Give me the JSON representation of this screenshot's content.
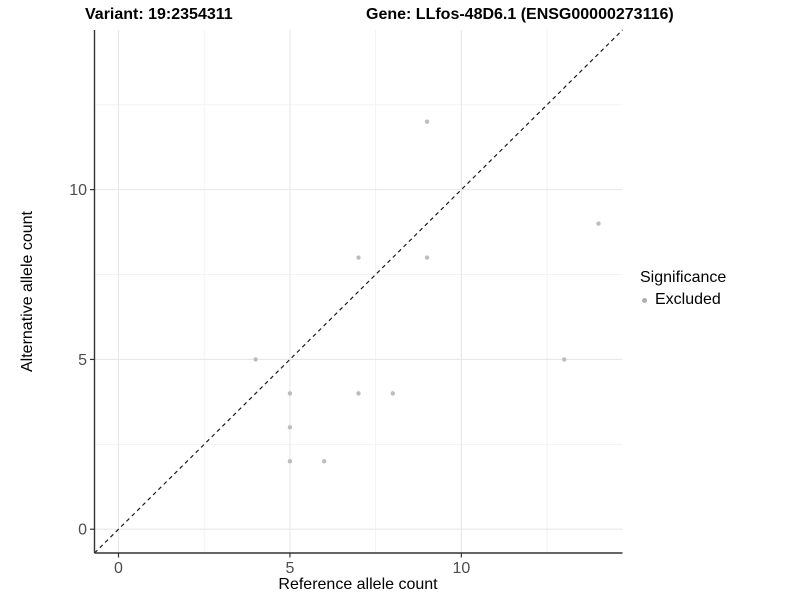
{
  "header": {
    "variant_label": "Variant: 19:2354311",
    "gene_label": "Gene: LLfos-48D6.1 (ENSG00000273116)"
  },
  "legend": {
    "title": "Significance",
    "items": [
      {
        "label": "Excluded",
        "color": "#aeaeae"
      }
    ]
  },
  "chart_data": {
    "type": "scatter",
    "xlabel": "Reference allele count",
    "ylabel": "Alternative allele count",
    "xlim": [
      0,
      14
    ],
    "ylim": [
      0,
      14
    ],
    "expand": 0.05,
    "x_major_breaks": [
      0,
      5,
      10
    ],
    "x_minor_breaks": [
      2.5,
      7.5,
      12.5
    ],
    "y_major_breaks": [
      0,
      5,
      10
    ],
    "y_minor_breaks": [
      2.5,
      7.5,
      12.5
    ],
    "x_tick_labels": [
      "0",
      "5",
      "10"
    ],
    "y_tick_labels": [
      "0",
      "5",
      "10"
    ],
    "grid": true,
    "legend_position": "right",
    "identity_line": {
      "show": true,
      "style": "dashed",
      "color": "#1a1a1a"
    },
    "series": [
      {
        "name": "Excluded",
        "points": [
          {
            "x": 9,
            "y": 12
          },
          {
            "x": 14,
            "y": 9
          },
          {
            "x": 7,
            "y": 8
          },
          {
            "x": 9,
            "y": 8
          },
          {
            "x": 4,
            "y": 5
          },
          {
            "x": 13,
            "y": 5
          },
          {
            "x": 5,
            "y": 4
          },
          {
            "x": 7,
            "y": 4
          },
          {
            "x": 8,
            "y": 4
          },
          {
            "x": 5,
            "y": 3
          },
          {
            "x": 5,
            "y": 2
          },
          {
            "x": 6,
            "y": 2
          }
        ]
      }
    ],
    "colors": {
      "point": "#bdbdbd",
      "grid_major": "#e8e8e8",
      "grid_minor": "#f3f3f3",
      "axis_line": "#333333",
      "tick_mark": "#333333",
      "tick_label": "#4d4d4d"
    }
  }
}
